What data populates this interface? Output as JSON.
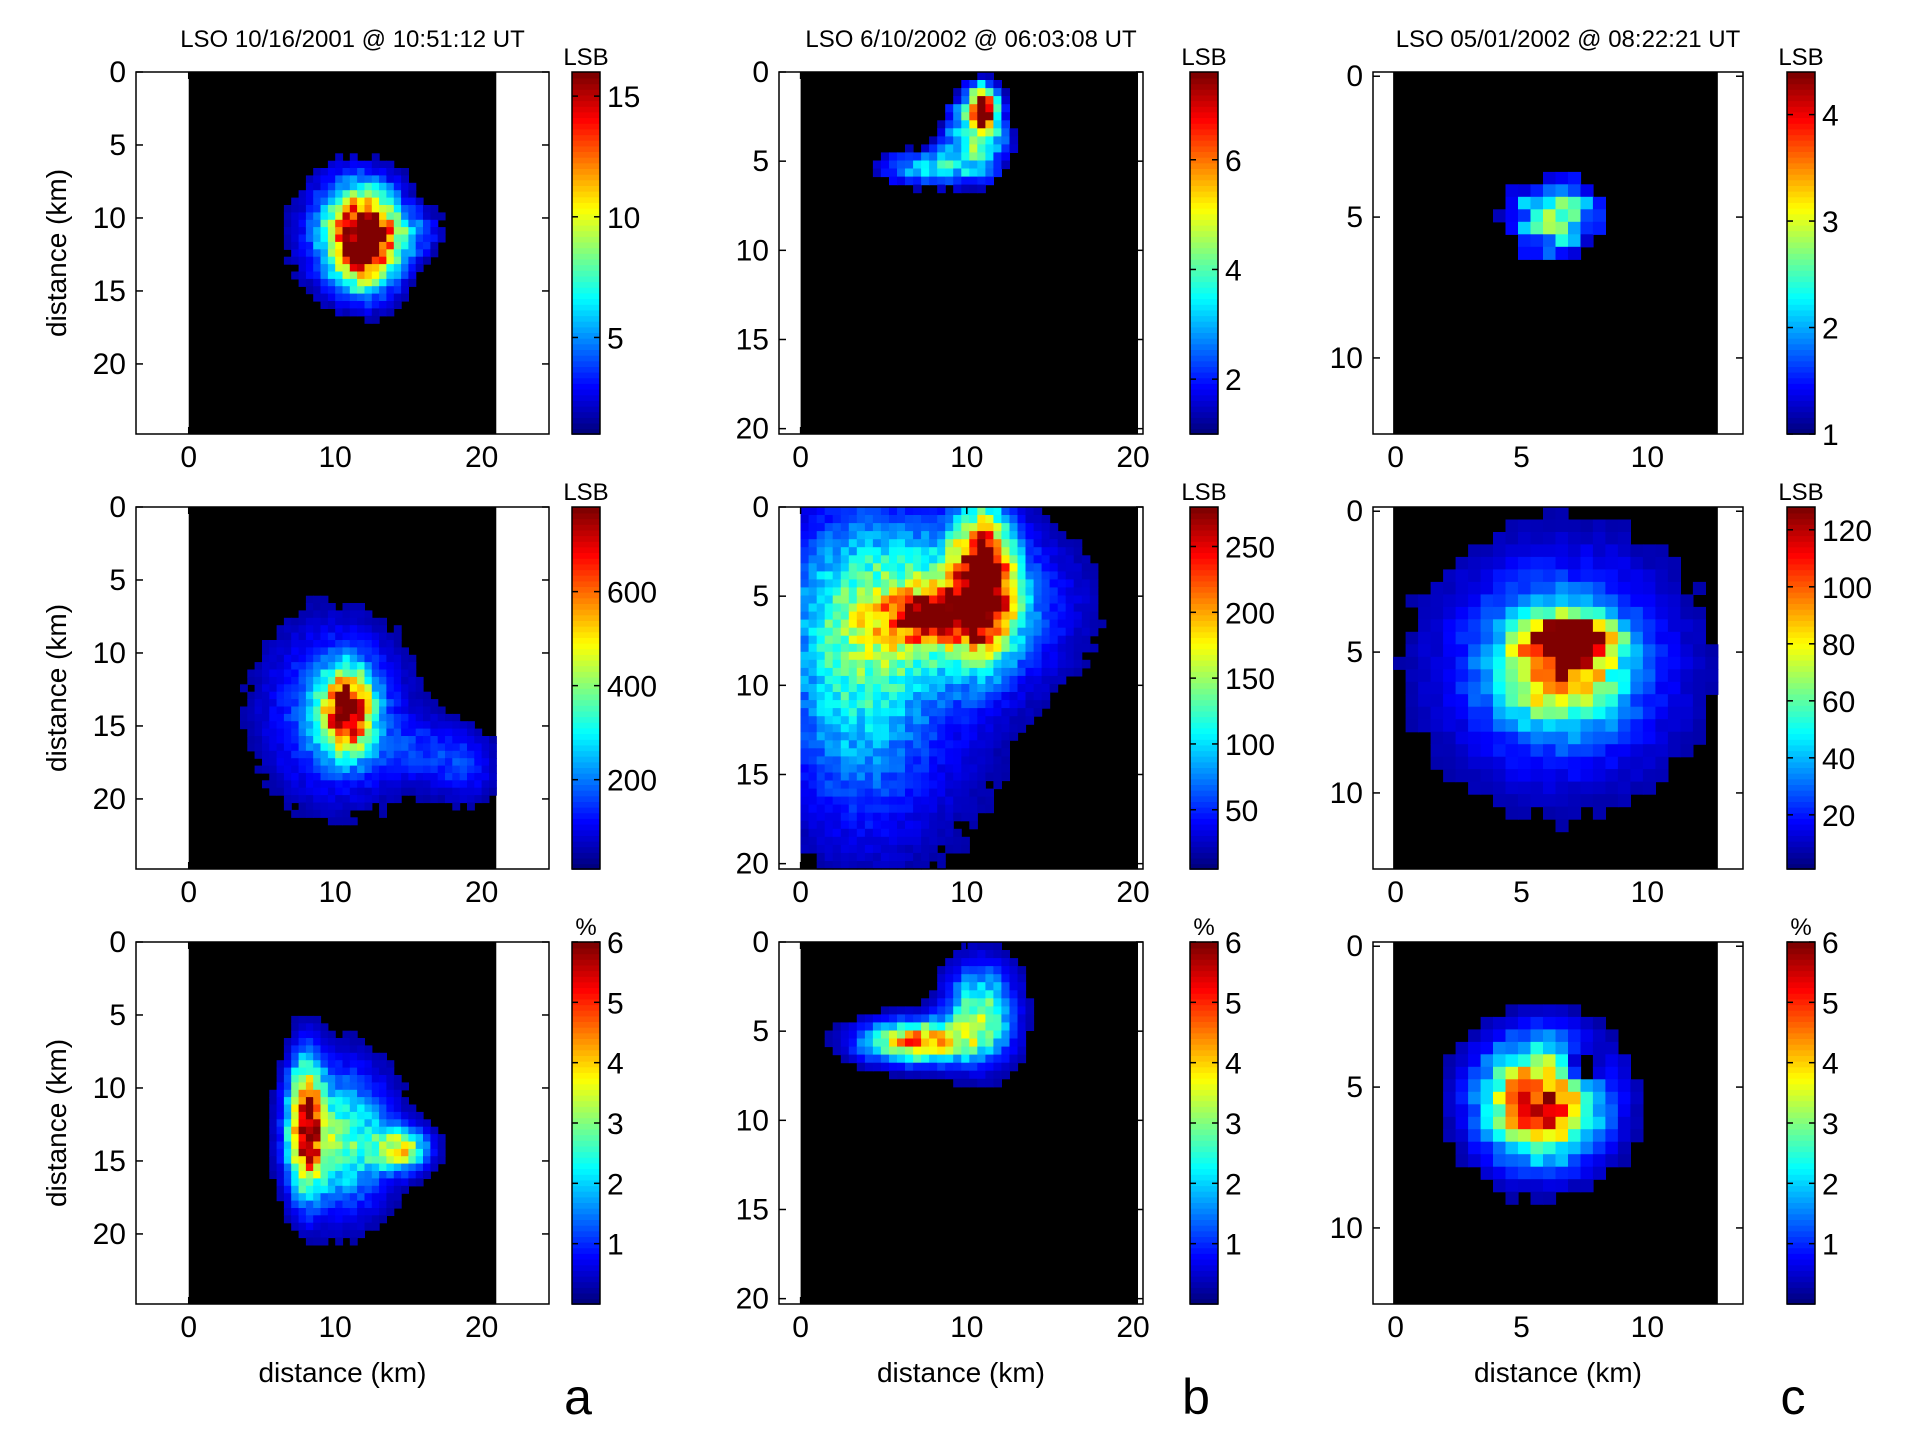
{
  "chart_data": {
    "type": "heatmap",
    "columns": [
      {
        "letter": "a",
        "title": "LSO  10/16/2001 @ 10:51:12 UT",
        "xlim": [
          -3.6,
          24.6
        ],
        "x_ticks": [
          "0",
          "10",
          "20"
        ],
        "y_ticks": [
          "0",
          "5",
          "10",
          "15",
          "20"
        ],
        "data_x_range": [
          0,
          21
        ],
        "rows": [
          {
            "ylim": [
              0,
              24.8
            ],
            "ylabel": "distance (km)",
            "colorbar": {
              "unit": "LSB",
              "min": 1,
              "max": 16,
              "ticks": [
                "5",
                "10",
                "15"
              ]
            },
            "blobs": [
              {
                "x": 12,
                "y": 11.5,
                "sx": 1.6,
                "sy": 2.2,
                "peak": 15
              },
              {
                "x": 11,
                "y": 11,
                "sx": 3,
                "sy": 3.4,
                "peak": 4.5
              },
              {
                "x": 15.5,
                "y": 11,
                "sx": 1.6,
                "sy": 1.2,
                "peak": 2.5
              }
            ]
          },
          {
            "ylim": [
              0,
              24.8
            ],
            "ylabel": "distance (km)",
            "colorbar": {
              "unit": "LSB",
              "min": 10,
              "max": 780,
              "ticks": [
                "200",
                "400",
                "600"
              ]
            },
            "blobs": [
              {
                "x": 10.8,
                "y": 14,
                "sx": 1.2,
                "sy": 1.9,
                "peak": 660
              },
              {
                "x": 10,
                "y": 14,
                "sx": 3.4,
                "sy": 4.2,
                "peak": 210
              },
              {
                "x": 16.5,
                "y": 16.8,
                "sx": 2.6,
                "sy": 1.6,
                "peak": 110
              },
              {
                "x": 19,
                "y": 18.3,
                "sx": 1.5,
                "sy": 1.6,
                "peak": 90
              }
            ]
          },
          {
            "ylim": [
              0,
              24.8
            ],
            "ylabel": "distance (km)",
            "colorbar": {
              "unit": "%",
              "min": 0,
              "max": 6,
              "ticks": [
                "1",
                "2",
                "3",
                "4",
                "5",
                "6"
              ]
            },
            "blobs": [
              {
                "x": 10.5,
                "y": 13.5,
                "sx": 2.2,
                "sy": 3.2,
                "peak": 2.8
              },
              {
                "x": 14.5,
                "y": 14.2,
                "sx": 1.3,
                "sy": 1,
                "peak": 3.4
              },
              {
                "x": 8,
                "y": 12.5,
                "sx": 0.8,
                "sy": 3,
                "peak": 5.2
              }
            ]
          }
        ]
      },
      {
        "letter": "b",
        "title": "LSO  6/10/2002 @ 06:03:08 UT",
        "xlim": [
          -1.3,
          20.6
        ],
        "x_ticks": [
          "0",
          "10",
          "20"
        ],
        "y_ticks": [
          "0",
          "5",
          "10",
          "15",
          "20"
        ],
        "data_x_range": [
          0,
          20.3
        ],
        "rows": [
          {
            "ylim": [
              0,
              20.3
            ],
            "ylabel": "",
            "colorbar": {
              "unit": "LSB",
              "min": 1,
              "max": 7.6,
              "ticks": [
                "2",
                "4",
                "6"
              ]
            },
            "blobs": [
              {
                "x": 10.6,
                "y": 3.4,
                "sx": 1.5,
                "sy": 1.9,
                "peak": 4.2
              },
              {
                "x": 7,
                "y": 5.4,
                "sx": 2.2,
                "sy": 0.8,
                "peak": 3
              },
              {
                "x": 11,
                "y": 2,
                "sx": 0.5,
                "sy": 0.8,
                "peak": 7
              }
            ]
          },
          {
            "ylim": [
              0,
              20.3
            ],
            "ylabel": "",
            "colorbar": {
              "unit": "LSB",
              "min": 5,
              "max": 280,
              "ticks": [
                "50",
                "100",
                "150",
                "200",
                "250"
              ]
            },
            "blobs": [
              {
                "x": 11,
                "y": 4,
                "sx": 1.2,
                "sy": 2.6,
                "peak": 270
              },
              {
                "x": 8,
                "y": 6.2,
                "sx": 1.8,
                "sy": 0.9,
                "peak": 170
              },
              {
                "x": 9,
                "y": 5.5,
                "sx": 4.5,
                "sy": 3,
                "peak": 120
              },
              {
                "x": 3,
                "y": 8,
                "sx": 3,
                "sy": 6,
                "peak": 85
              },
              {
                "x": 6,
                "y": 12,
                "sx": 5,
                "sy": 6,
                "peak": 35
              }
            ]
          },
          {
            "ylim": [
              0,
              20.3
            ],
            "ylabel": "",
            "colorbar": {
              "unit": "%",
              "min": 0,
              "max": 6,
              "ticks": [
                "1",
                "2",
                "3",
                "4",
                "5",
                "6"
              ]
            },
            "blobs": [
              {
                "x": 10.8,
                "y": 4,
                "sx": 1.4,
                "sy": 1.8,
                "peak": 3
              },
              {
                "x": 7,
                "y": 5.6,
                "sx": 2.2,
                "sy": 0.8,
                "peak": 4.6
              }
            ]
          }
        ]
      },
      {
        "letter": "c",
        "title": "LSO 05/01/2002 @ 08:22:21 UT",
        "xlim": [
          -0.9,
          13.8
        ],
        "x_ticks": [
          "0",
          "5",
          "10"
        ],
        "y_ticks": [
          "0",
          "5",
          "10"
        ],
        "data_x_range": [
          -0.1,
          12.8
        ],
        "rows": [
          {
            "ylim": [
              -0.15,
              12.7
            ],
            "ylabel": "",
            "colorbar": {
              "unit": "LSB",
              "min": 1,
              "max": 4.4,
              "ticks": [
                "1",
                "2",
                "3",
                "4"
              ]
            },
            "blobs": [
              {
                "x": 6.3,
                "y": 5,
                "sx": 1.6,
                "sy": 1.3,
                "peak": 2.6
              }
            ]
          },
          {
            "ylim": [
              -0.15,
              12.7
            ],
            "ylabel": "",
            "colorbar": {
              "unit": "LSB",
              "min": 1,
              "max": 128,
              "ticks": [
                "20",
                "40",
                "60",
                "80",
                "100",
                "120"
              ]
            },
            "blobs": [
              {
                "x": 7.2,
                "y": 4.5,
                "sx": 1,
                "sy": 0.45,
                "peak": 120
              },
              {
                "x": 6.5,
                "y": 5.5,
                "sx": 1.5,
                "sy": 1.2,
                "peak": 75
              },
              {
                "x": 6.5,
                "y": 5.5,
                "sx": 3.2,
                "sy": 2.8,
                "peak": 40
              }
            ]
          },
          {
            "ylim": [
              -0.15,
              12.7
            ],
            "ylabel": "",
            "colorbar": {
              "unit": "%",
              "min": 0,
              "max": 6,
              "ticks": [
                "1",
                "2",
                "3",
                "4",
                "5",
                "6"
              ]
            },
            "blobs": [
              {
                "x": 5.8,
                "y": 5.5,
                "sx": 1.6,
                "sy": 1.4,
                "peak": 5.6
              },
              {
                "x": 7.3,
                "y": 4.4,
                "sx": 0.6,
                "sy": 0.5,
                "peak": -2.4
              }
            ]
          }
        ]
      }
    ],
    "xlabel": "distance (km)"
  }
}
